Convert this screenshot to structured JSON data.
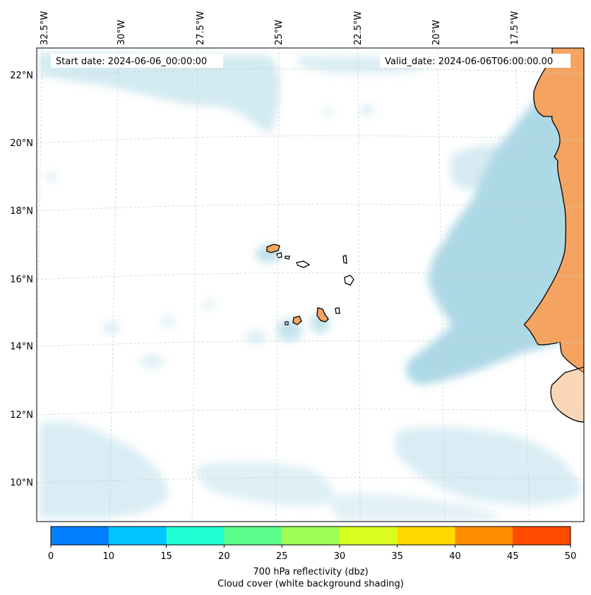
{
  "map": {
    "start_date": "Start date: 2024-06-06_00:00:00",
    "valid_date": "Valid_date: 2024-06-06T06:00:00.00",
    "longitude_labels": [
      "32.5°W",
      "30°W",
      "27.5°W",
      "25°W",
      "22.5°W",
      "20°W",
      "17.5°W"
    ],
    "latitude_labels": [
      "22°N",
      "20°N",
      "18°N",
      "16°N",
      "14°N",
      "12°N",
      "10°N"
    ],
    "land_color": "#f4a460",
    "cloud_color": "#add8e6"
  },
  "colorbar": {
    "ticks": [
      "0",
      "10",
      "15",
      "20",
      "25",
      "30",
      "35",
      "40",
      "45",
      "50"
    ],
    "colors": [
      "#0080ff",
      "#00c5ff",
      "#20ffd4",
      "#5dff8c",
      "#9dff55",
      "#d8ff1e",
      "#ffd800",
      "#ff8c00",
      "#ff4a00"
    ],
    "label_line1": "700 hPa reflectivity (dbz)",
    "label_line2": "Cloud cover (white background shading)"
  }
}
